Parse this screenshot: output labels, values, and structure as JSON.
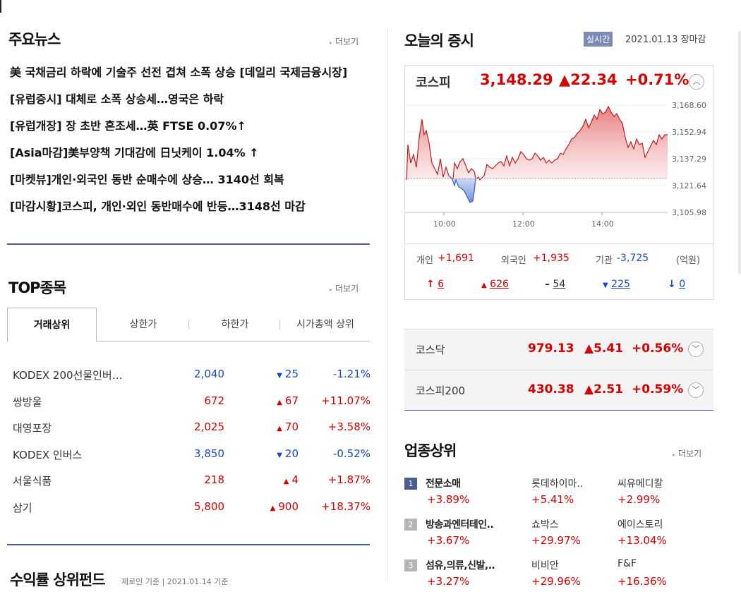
{
  "news": {
    "title": "주요뉴스",
    "more": "더보기",
    "items": [
      "美 국채금리 하락에 기술주 선전 겹쳐 소폭 상승 [데일리 국제금융시장]",
      "[유럽증시] 대체로 소폭 상승세…영국은 하락",
      "[유럽개장] 장 초반 혼조세…英 FTSE 0.07%↑",
      "[Asia마감]美부양책 기대감에 日닛케이 1.04% ↑",
      "[마켓뷰]개인·외국인 동반 순매수에 상승… 3140선 회복",
      "[마감시황]코스피, 개인·외인 동반매수에 반등…3148선 마감"
    ]
  },
  "top": {
    "title": "TOP종목",
    "more": "더보기",
    "tabs": [
      "거래상위",
      "상한가",
      "하한가",
      "시가총액 상위"
    ],
    "rows": [
      {
        "name": "KODEX 200선물인버…",
        "price": "2,040",
        "dir": "down",
        "chg": "25",
        "rate": "-1.21%"
      },
      {
        "name": "쌍방울",
        "price": "672",
        "dir": "up",
        "chg": "67",
        "rate": "+11.07%"
      },
      {
        "name": "대영포장",
        "price": "2,025",
        "dir": "up",
        "chg": "70",
        "rate": "+3.58%"
      },
      {
        "name": "KODEX 인버스",
        "price": "3,850",
        "dir": "down",
        "chg": "20",
        "rate": "-0.52%"
      },
      {
        "name": "서울식품",
        "price": "218",
        "dir": "up",
        "chg": "4",
        "rate": "+1.87%"
      },
      {
        "name": "삼기",
        "price": "5,800",
        "dir": "up",
        "chg": "900",
        "rate": "+18.37%"
      }
    ]
  },
  "bottom": {
    "title": "수익률 상위펀드",
    "sub": "제로인 기준 | 2021.01.14 기준"
  },
  "market": {
    "title": "오늘의 증시",
    "badge": "실시간",
    "date": "2021.01.13 장마감",
    "kospi": {
      "name": "코스피",
      "value": "3,148.29",
      "change": "▲22.34",
      "rate": "+0.71%"
    },
    "yticks": [
      "3,168.60",
      "3,152.94",
      "3,137.29",
      "3,121.64",
      "3,105.98"
    ],
    "xticks": [
      "10:00",
      "12:00",
      "14:00"
    ],
    "investors": {
      "individual_label": "개인",
      "individual": "+1,691",
      "foreign_label": "외국인",
      "foreign": "+1,935",
      "institution_label": "기관",
      "institution": "-3,725",
      "unit": "(억원)"
    },
    "advance": {
      "upper": "6",
      "up": "626",
      "flat": "54",
      "down": "225",
      "lower": "0"
    },
    "kosdaq": {
      "name": "코스닥",
      "value": "979.13",
      "change": "▲5.41",
      "rate": "+0.56%"
    },
    "kospi200": {
      "name": "코스피200",
      "value": "430.38",
      "change": "▲2.51",
      "rate": "+0.59%"
    }
  },
  "industry": {
    "title": "업종상위",
    "more": "더보기",
    "rows": [
      {
        "rank": "1",
        "name": "전문소매",
        "rate": "+3.89%",
        "s1": "롯데하이마..",
        "r1": "+5.41%",
        "s2": "씨유메디칼",
        "r2": "+2.99%"
      },
      {
        "rank": "2",
        "name": "방송과엔터테인..",
        "rate": "+3.67%",
        "s1": "쇼박스",
        "r1": "+29.97%",
        "s2": "에이스토리",
        "r2": "+13.04%"
      },
      {
        "rank": "3",
        "name": "섬유,의류,신발,..",
        "rate": "+3.27%",
        "s1": "비비안",
        "r1": "+29.96%",
        "s2": "F&F",
        "r2": "+16.36%"
      }
    ]
  },
  "colors": {
    "up": "#d60000",
    "down": "#1a48c8",
    "accent": "#4b5b94"
  }
}
